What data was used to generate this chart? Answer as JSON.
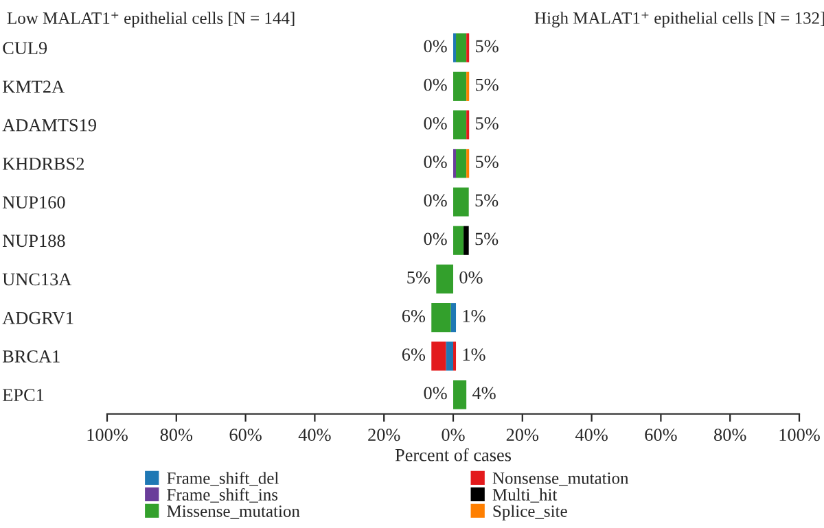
{
  "chart_data": {
    "type": "bar",
    "orientation": "horizontal",
    "stacked": true,
    "title": "Low MALAT1⁺ epithelial cells [N = 144]",
    "subtitle": "High MALAT1⁺ epithelial cells [N = 132]",
    "xlabel": "Percent of cases",
    "grid": false,
    "legend": "bottom",
    "categories": [
      "CUL9",
      "KMT2A",
      "ADAMTS19",
      "KHDRBS2",
      "NUP160",
      "NUP188",
      "UNC13A",
      "ADGRV1",
      "BRCA1",
      "EPC1"
    ],
    "xlim": [
      -100,
      100
    ],
    "xticks": [
      {
        "value": -100,
        "label": "100%"
      },
      {
        "value": -80,
        "label": "80%"
      },
      {
        "value": -60,
        "label": "60%"
      },
      {
        "value": -40,
        "label": "40%"
      },
      {
        "value": -20,
        "label": "20%"
      },
      {
        "value": 0,
        "label": "0%"
      },
      {
        "value": 20,
        "label": "20%"
      },
      {
        "value": 40,
        "label": "40%"
      },
      {
        "value": 60,
        "label": "60%"
      },
      {
        "value": 80,
        "label": "80%"
      },
      {
        "value": 100,
        "label": "100%"
      }
    ],
    "series": [
      {
        "name": "Frame_shift_del",
        "color": "#1f78b4",
        "values": [
          0.8,
          0,
          0,
          0,
          0,
          0,
          0,
          0.8,
          0,
          0
        ]
      },
      {
        "name": "Frame_shift_ins",
        "color": "#6a3d9a",
        "values": [
          0,
          0,
          0,
          0.8,
          0,
          0,
          0,
          0,
          0,
          0
        ]
      },
      {
        "name": "Missense_mutation",
        "color": "#33a02c",
        "values": [
          3.0,
          3.8,
          3.8,
          3.0,
          4.5,
          3.0,
          0,
          0,
          0,
          3.8
        ]
      },
      {
        "name": "Nonsense_mutation",
        "color": "#e31a1c",
        "values": [
          0.8,
          0,
          0.8,
          0,
          0,
          0,
          0,
          0,
          0.8,
          0
        ]
      },
      {
        "name": "Multi_hit",
        "color": "#000000",
        "values": [
          0,
          0,
          0,
          0,
          0,
          1.5,
          0,
          0,
          0,
          0
        ]
      },
      {
        "name": "Splice_site",
        "color": "#ff7f00",
        "values": [
          0,
          0.8,
          0,
          0.8,
          0,
          0,
          0,
          0,
          0,
          0
        ]
      },
      {
        "color": "#1f78b4",
        "values": [
          0,
          0,
          0,
          0,
          0,
          0,
          0,
          -0.7,
          -2.1,
          0
        ]
      },
      {
        "color": "#33a02c",
        "values": [
          0,
          0,
          0,
          0,
          0,
          0,
          -4.9,
          -5.6,
          0,
          0
        ]
      },
      {
        "color": "#e31a1c",
        "values": [
          0,
          0,
          0,
          0,
          0,
          0,
          0,
          0,
          -4.2,
          0
        ]
      }
    ],
    "annotations": [
      {
        "text": "0%",
        "x": -0.0,
        "y": "CUL9"
      },
      {
        "text": "5%",
        "x": 4.6,
        "y": "CUL9"
      },
      {
        "text": "0%",
        "x": -0.0,
        "y": "KMT2A"
      },
      {
        "text": "5%",
        "x": 4.6,
        "y": "KMT2A"
      },
      {
        "text": "0%",
        "x": -0.0,
        "y": "ADAMTS19"
      },
      {
        "text": "5%",
        "x": 4.6,
        "y": "ADAMTS19"
      },
      {
        "text": "0%",
        "x": -0.0,
        "y": "KHDRBS2"
      },
      {
        "text": "5%",
        "x": 4.6,
        "y": "KHDRBS2"
      },
      {
        "text": "0%",
        "x": -0.0,
        "y": "NUP160"
      },
      {
        "text": "5%",
        "x": 4.5,
        "y": "NUP160"
      },
      {
        "text": "0%",
        "x": -0.0,
        "y": "NUP188"
      },
      {
        "text": "5%",
        "x": 4.5,
        "y": "NUP188"
      },
      {
        "text": "5%",
        "x": -4.9,
        "y": "UNC13A"
      },
      {
        "text": "0%",
        "x": 0,
        "y": "UNC13A"
      },
      {
        "text": "6%",
        "x": -6.3,
        "y": "ADGRV1"
      },
      {
        "text": "1%",
        "x": 0.8,
        "y": "ADGRV1"
      },
      {
        "text": "6%",
        "x": -6.3,
        "y": "BRCA1"
      },
      {
        "text": "1%",
        "x": 0.8,
        "y": "BRCA1"
      },
      {
        "text": "0%",
        "x": -0.0,
        "y": "EPC1"
      },
      {
        "text": "4%",
        "x": 3.8,
        "y": "EPC1"
      }
    ]
  }
}
